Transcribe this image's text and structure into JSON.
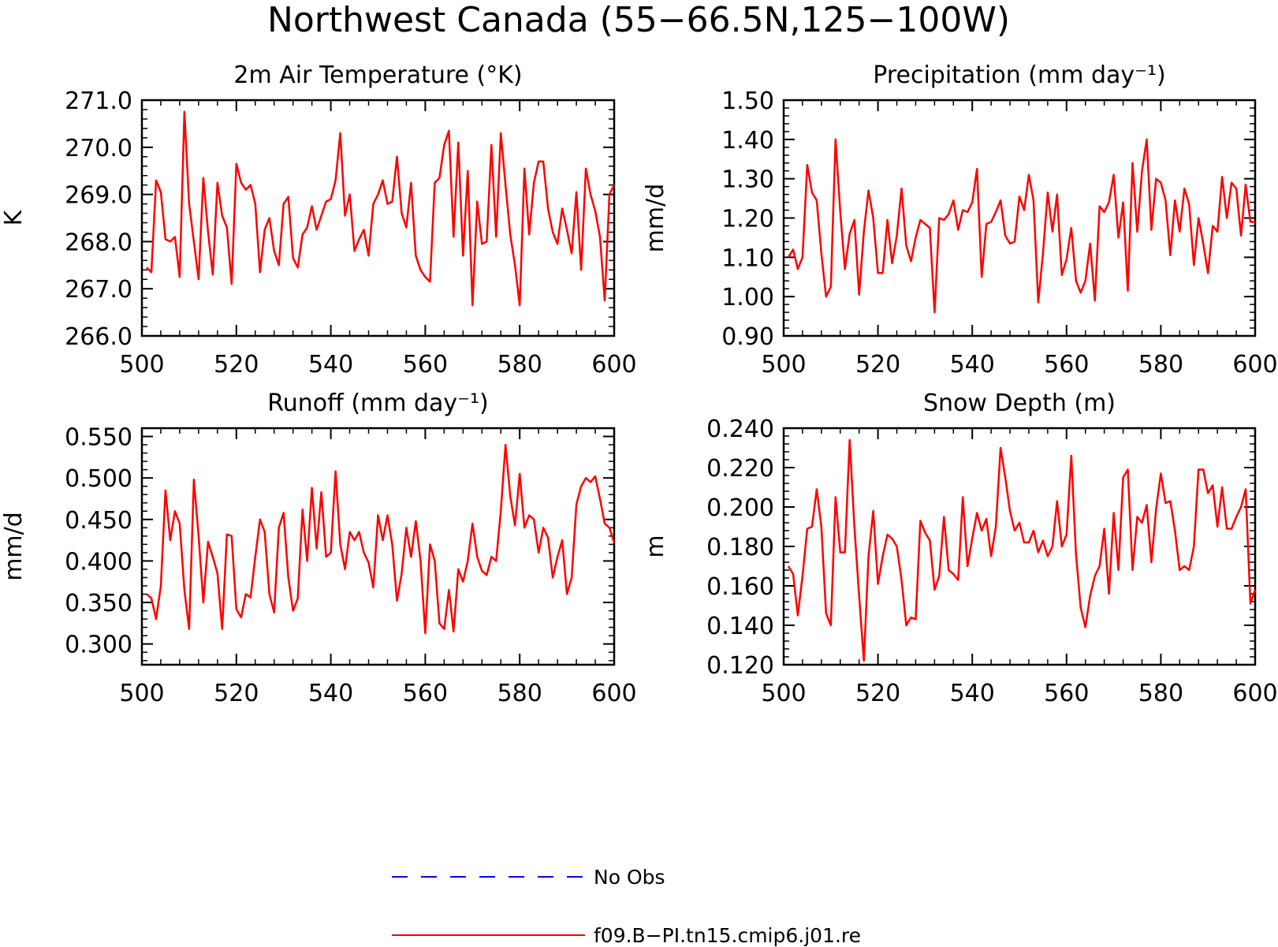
{
  "figure": {
    "title": "Northwest Canada (55−66.5N,125−100W)"
  },
  "legend": [
    {
      "label": "No Obs",
      "color": "#0000ff",
      "style": "dashed"
    },
    {
      "label": "f09.B−PI.tn15.cmip6.j01.re",
      "color": "#ff0000",
      "style": "solid"
    }
  ],
  "chart_data": [
    {
      "type": "line",
      "title": "2m Air Temperature (°K)",
      "ylabel": "K",
      "xlim": [
        500,
        600
      ],
      "ylim": [
        266.0,
        271.0
      ],
      "xticks": [
        500,
        520,
        540,
        560,
        580,
        600
      ],
      "yticks": [
        266.0,
        267.0,
        268.0,
        269.0,
        270.0,
        271.0
      ],
      "ytick_labels": [
        "266.0",
        "267.0",
        "268.0",
        "269.0",
        "270.0",
        "271.0"
      ],
      "series": [
        {
          "name": "f09.B−PI.tn15.cmip6.j01.re",
          "color": "#ff0000",
          "x": [
            501,
            502,
            503,
            504,
            505,
            506,
            507,
            508,
            509,
            510,
            511,
            512,
            513,
            514,
            515,
            516,
            517,
            518,
            519,
            520,
            521,
            522,
            523,
            524,
            525,
            526,
            527,
            528,
            529,
            530,
            531,
            532,
            533,
            534,
            535,
            536,
            537,
            538,
            539,
            540,
            541,
            542,
            543,
            544,
            545,
            546,
            547,
            548,
            549,
            550,
            551,
            552,
            553,
            554,
            555,
            556,
            557,
            558,
            559,
            560,
            561,
            562,
            563,
            564,
            565,
            566,
            567,
            568,
            569,
            570,
            571,
            572,
            573,
            574,
            575,
            576,
            577,
            578,
            579,
            580,
            581,
            582,
            583,
            584,
            585,
            586,
            587,
            588,
            589,
            590,
            591,
            592,
            593,
            594,
            595,
            596,
            597,
            598,
            599,
            600
          ],
          "values": [
            267.45,
            267.35,
            269.3,
            269.05,
            268.05,
            268.0,
            268.1,
            267.25,
            270.75,
            268.8,
            268.0,
            267.2,
            269.35,
            268.2,
            267.3,
            269.25,
            268.55,
            268.3,
            267.1,
            269.65,
            269.25,
            269.1,
            269.2,
            268.8,
            267.35,
            268.25,
            268.5,
            267.8,
            267.5,
            268.8,
            268.95,
            267.65,
            267.45,
            268.15,
            268.3,
            268.75,
            268.25,
            268.55,
            268.85,
            268.9,
            269.3,
            270.3,
            268.55,
            269.0,
            267.8,
            268.05,
            268.25,
            267.7,
            268.8,
            269.0,
            269.3,
            268.8,
            268.85,
            269.8,
            268.6,
            268.3,
            269.25,
            267.7,
            267.4,
            267.25,
            267.15,
            269.25,
            269.35,
            270.05,
            270.35,
            268.1,
            270.1,
            267.7,
            269.5,
            266.65,
            268.85,
            267.95,
            268.0,
            270.05,
            268.1,
            270.3,
            269.2,
            268.15,
            267.5,
            266.65,
            269.55,
            268.15,
            269.25,
            269.7,
            269.7,
            268.7,
            268.2,
            267.95,
            268.7,
            268.25,
            267.75,
            269.05,
            267.4,
            269.55,
            269.0,
            268.65,
            268.1,
            266.75,
            269.0,
            269.2
          ]
        }
      ]
    },
    {
      "type": "line",
      "title": "Precipitation (mm day⁻¹)",
      "ylabel": "mm/d",
      "xlim": [
        500,
        600
      ],
      "ylim": [
        0.9,
        1.5
      ],
      "xticks": [
        500,
        520,
        540,
        560,
        580,
        600
      ],
      "yticks": [
        0.9,
        1.0,
        1.1,
        1.2,
        1.3,
        1.4,
        1.5
      ],
      "ytick_labels": [
        "0.90",
        "1.00",
        "1.10",
        "1.20",
        "1.30",
        "1.40",
        "1.50"
      ],
      "series": [
        {
          "name": "f09.B−PI.tn15.cmip6.j01.re",
          "color": "#ff0000",
          "x": [
            501,
            502,
            503,
            504,
            505,
            506,
            507,
            508,
            509,
            510,
            511,
            512,
            513,
            514,
            515,
            516,
            517,
            518,
            519,
            520,
            521,
            522,
            523,
            524,
            525,
            526,
            527,
            528,
            529,
            530,
            531,
            532,
            533,
            534,
            535,
            536,
            537,
            538,
            539,
            540,
            541,
            542,
            543,
            544,
            545,
            546,
            547,
            548,
            549,
            550,
            551,
            552,
            553,
            554,
            555,
            556,
            557,
            558,
            559,
            560,
            561,
            562,
            563,
            564,
            565,
            566,
            567,
            568,
            569,
            570,
            571,
            572,
            573,
            574,
            575,
            576,
            577,
            578,
            579,
            580,
            581,
            582,
            583,
            584,
            585,
            586,
            587,
            588,
            589,
            590,
            591,
            592,
            593,
            594,
            595,
            596,
            597,
            598,
            599,
            600
          ],
          "values": [
            1.1,
            1.12,
            1.07,
            1.1,
            1.335,
            1.265,
            1.245,
            1.11,
            1.0,
            1.025,
            1.4,
            1.215,
            1.07,
            1.16,
            1.195,
            1.005,
            1.165,
            1.27,
            1.2,
            1.06,
            1.06,
            1.195,
            1.085,
            1.155,
            1.275,
            1.13,
            1.09,
            1.15,
            1.195,
            1.185,
            1.175,
            0.96,
            1.2,
            1.195,
            1.21,
            1.245,
            1.17,
            1.22,
            1.215,
            1.24,
            1.325,
            1.05,
            1.185,
            1.19,
            1.215,
            1.245,
            1.155,
            1.135,
            1.14,
            1.255,
            1.22,
            1.31,
            1.245,
            0.985,
            1.11,
            1.265,
            1.165,
            1.26,
            1.055,
            1.095,
            1.175,
            1.04,
            1.01,
            1.04,
            1.135,
            0.99,
            1.23,
            1.215,
            1.24,
            1.31,
            1.15,
            1.24,
            1.015,
            1.34,
            1.165,
            1.32,
            1.4,
            1.17,
            1.3,
            1.29,
            1.245,
            1.105,
            1.245,
            1.165,
            1.275,
            1.235,
            1.08,
            1.2,
            1.135,
            1.06,
            1.18,
            1.165,
            1.305,
            1.2,
            1.29,
            1.275,
            1.155,
            1.285,
            1.19,
            1.19
          ]
        }
      ]
    },
    {
      "type": "line",
      "title": "Runoff (mm day⁻¹)",
      "ylabel": "mm/d",
      "xlim": [
        500,
        600
      ],
      "ylim": [
        0.275,
        0.56
      ],
      "xticks": [
        500,
        520,
        540,
        560,
        580,
        600
      ],
      "yticks": [
        0.3,
        0.35,
        0.4,
        0.45,
        0.5,
        0.55
      ],
      "ytick_labels": [
        "0.300",
        "0.350",
        "0.400",
        "0.450",
        "0.500",
        "0.550"
      ],
      "series": [
        {
          "name": "f09.B−PI.tn15.cmip6.j01.re",
          "color": "#ff0000",
          "x": [
            501,
            502,
            503,
            504,
            505,
            506,
            507,
            508,
            509,
            510,
            511,
            512,
            513,
            514,
            515,
            516,
            517,
            518,
            519,
            520,
            521,
            522,
            523,
            524,
            525,
            526,
            527,
            528,
            529,
            530,
            531,
            532,
            533,
            534,
            535,
            536,
            537,
            538,
            539,
            540,
            541,
            542,
            543,
            544,
            545,
            546,
            547,
            548,
            549,
            550,
            551,
            552,
            553,
            554,
            555,
            556,
            557,
            558,
            559,
            560,
            561,
            562,
            563,
            564,
            565,
            566,
            567,
            568,
            569,
            570,
            571,
            572,
            573,
            574,
            575,
            576,
            577,
            578,
            579,
            580,
            581,
            582,
            583,
            584,
            585,
            586,
            587,
            588,
            589,
            590,
            591,
            592,
            593,
            594,
            595,
            596,
            597,
            598,
            599,
            600
          ],
          "values": [
            0.36,
            0.355,
            0.33,
            0.37,
            0.485,
            0.425,
            0.46,
            0.445,
            0.365,
            0.318,
            0.498,
            0.43,
            0.35,
            0.423,
            0.405,
            0.385,
            0.318,
            0.432,
            0.43,
            0.342,
            0.332,
            0.36,
            0.356,
            0.405,
            0.45,
            0.435,
            0.36,
            0.338,
            0.44,
            0.458,
            0.38,
            0.34,
            0.355,
            0.462,
            0.4,
            0.488,
            0.415,
            0.483,
            0.405,
            0.41,
            0.508,
            0.42,
            0.39,
            0.435,
            0.425,
            0.435,
            0.41,
            0.398,
            0.368,
            0.455,
            0.425,
            0.455,
            0.42,
            0.352,
            0.385,
            0.44,
            0.405,
            0.448,
            0.4,
            0.313,
            0.42,
            0.4,
            0.325,
            0.318,
            0.365,
            0.315,
            0.39,
            0.375,
            0.4,
            0.445,
            0.405,
            0.388,
            0.383,
            0.405,
            0.4,
            0.46,
            0.54,
            0.478,
            0.443,
            0.505,
            0.44,
            0.455,
            0.45,
            0.41,
            0.44,
            0.428,
            0.38,
            0.405,
            0.425,
            0.36,
            0.38,
            0.468,
            0.49,
            0.5,
            0.495,
            0.502,
            0.475,
            0.445,
            0.44,
            0.422
          ]
        }
      ]
    },
    {
      "type": "line",
      "title": "Snow Depth (m)",
      "ylabel": "m",
      "xlim": [
        500,
        600
      ],
      "ylim": [
        0.12,
        0.24
      ],
      "xticks": [
        500,
        520,
        540,
        560,
        580,
        600
      ],
      "yticks": [
        0.12,
        0.14,
        0.16,
        0.18,
        0.2,
        0.22,
        0.24
      ],
      "ytick_labels": [
        "0.120",
        "0.140",
        "0.160",
        "0.180",
        "0.200",
        "0.220",
        "0.240"
      ],
      "series": [
        {
          "name": "f09.B−PI.tn15.cmip6.j01.re",
          "color": "#ff0000",
          "x": [
            501,
            502,
            503,
            504,
            505,
            506,
            507,
            508,
            509,
            510,
            511,
            512,
            513,
            514,
            515,
            516,
            517,
            518,
            519,
            520,
            521,
            522,
            523,
            524,
            525,
            526,
            527,
            528,
            529,
            530,
            531,
            532,
            533,
            534,
            535,
            536,
            537,
            538,
            539,
            540,
            541,
            542,
            543,
            544,
            545,
            546,
            547,
            548,
            549,
            550,
            551,
            552,
            553,
            554,
            555,
            556,
            557,
            558,
            559,
            560,
            561,
            562,
            563,
            564,
            565,
            566,
            567,
            568,
            569,
            570,
            571,
            572,
            573,
            574,
            575,
            576,
            577,
            578,
            579,
            580,
            581,
            582,
            583,
            584,
            585,
            586,
            587,
            588,
            589,
            590,
            591,
            592,
            593,
            594,
            595,
            596,
            597,
            598,
            599,
            600
          ],
          "values": [
            0.17,
            0.166,
            0.145,
            0.165,
            0.189,
            0.19,
            0.209,
            0.19,
            0.146,
            0.14,
            0.205,
            0.177,
            0.177,
            0.234,
            0.19,
            0.155,
            0.122,
            0.175,
            0.198,
            0.161,
            0.175,
            0.186,
            0.184,
            0.18,
            0.163,
            0.14,
            0.144,
            0.143,
            0.193,
            0.187,
            0.183,
            0.158,
            0.165,
            0.195,
            0.168,
            0.166,
            0.163,
            0.205,
            0.17,
            0.184,
            0.197,
            0.188,
            0.194,
            0.175,
            0.19,
            0.23,
            0.215,
            0.198,
            0.188,
            0.192,
            0.182,
            0.182,
            0.188,
            0.177,
            0.183,
            0.175,
            0.18,
            0.203,
            0.18,
            0.186,
            0.226,
            0.176,
            0.149,
            0.139,
            0.155,
            0.165,
            0.17,
            0.189,
            0.156,
            0.197,
            0.168,
            0.215,
            0.219,
            0.168,
            0.195,
            0.192,
            0.201,
            0.172,
            0.199,
            0.217,
            0.202,
            0.203,
            0.188,
            0.168,
            0.17,
            0.168,
            0.18,
            0.219,
            0.219,
            0.207,
            0.211,
            0.19,
            0.21,
            0.189,
            0.189,
            0.195,
            0.2,
            0.209,
            0.151,
            0.158
          ]
        }
      ]
    }
  ]
}
